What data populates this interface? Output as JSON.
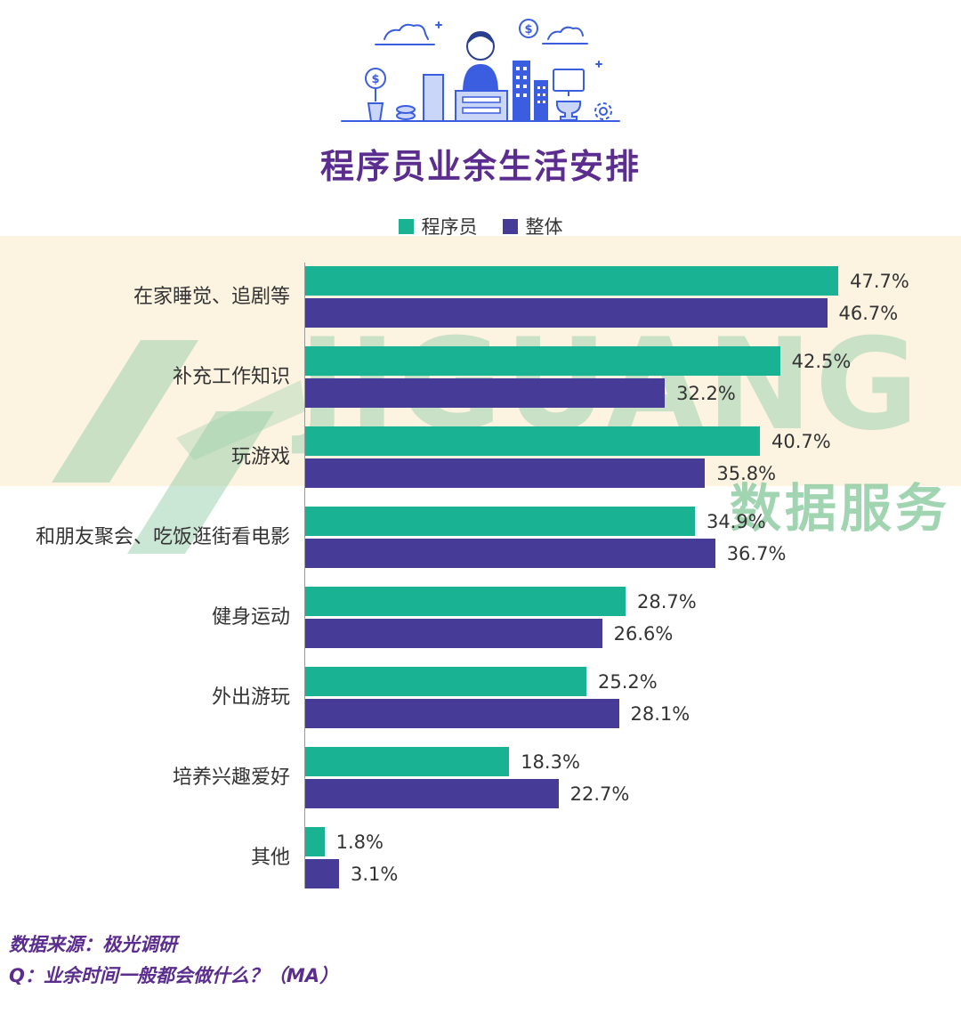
{
  "header": {
    "title": "程序员业余生活安排"
  },
  "chart_data": {
    "type": "bar",
    "orientation": "horizontal",
    "title": "程序员业余生活安排",
    "legend_position": "top",
    "grid": false,
    "xlim": [
      0,
      50
    ],
    "value_suffix": "%",
    "categories": [
      "在家睡觉、追剧等",
      "补充工作知识",
      "玩游戏",
      "和朋友聚会、吃饭逛街看电影",
      "健身运动",
      "外出游玩",
      "培养兴趣爱好",
      "其他"
    ],
    "series": [
      {
        "name": "程序员",
        "color": "#19b394",
        "values": [
          47.7,
          42.5,
          40.7,
          34.9,
          28.7,
          25.2,
          18.3,
          1.8
        ]
      },
      {
        "name": "整体",
        "color": "#463b96",
        "values": [
          46.7,
          32.2,
          35.8,
          36.7,
          26.6,
          28.1,
          22.7,
          3.1
        ]
      }
    ]
  },
  "watermark": {
    "text": "JIGUANG",
    "subtext": "数据服务",
    "color": "#a5d4ae"
  },
  "footer": {
    "source": "数据来源：极光调研",
    "question": "Q：业余时间一般都会做什么？（MA）"
  },
  "colors": {
    "programmer_bar": "#19b394",
    "overall_bar": "#463b96",
    "title_text": "#5b2d8e",
    "band_background": "#fcf3e0",
    "value_text": "#333333",
    "illustration_blue": "#3b5de0"
  }
}
